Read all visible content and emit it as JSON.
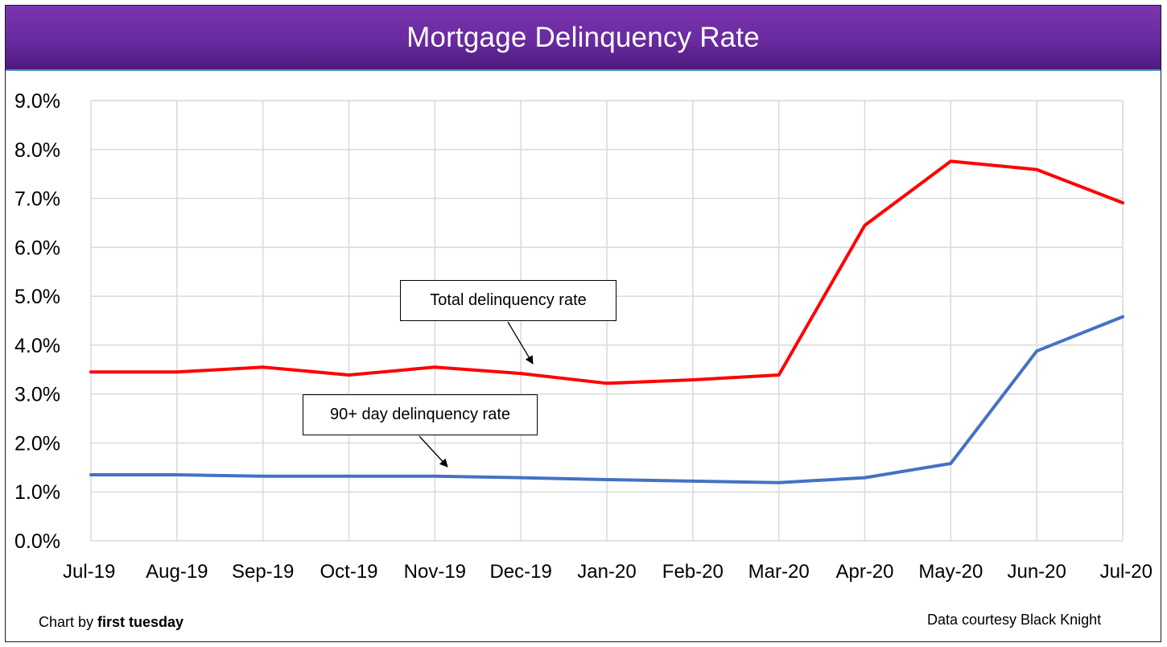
{
  "colors": {
    "title_bar": "#6a2aa0",
    "title_text": "#ffffff",
    "total_series": "#ff0000",
    "ninety_day_series": "#4472c4",
    "grid": "#d9d9d9"
  },
  "footer": {
    "chart_by_prefix": "Chart by ",
    "chart_by_name": "first tuesday",
    "source": "Data courtesy Black Knight"
  },
  "annotations": {
    "total": "Total delinquency rate",
    "ninety": "90+ day delinquency rate"
  },
  "chart_data": {
    "type": "line",
    "title": "Mortgage Delinquency Rate",
    "xlabel": "",
    "ylabel": "",
    "categories": [
      "Jul-19",
      "Aug-19",
      "Sep-19",
      "Oct-19",
      "Nov-19",
      "Dec-19",
      "Jan-20",
      "Feb-20",
      "Mar-20",
      "Apr-20",
      "May-20",
      "Jun-20",
      "Jul-20"
    ],
    "ylim": [
      0,
      9
    ],
    "yticks": [
      "0.0%",
      "1.0%",
      "2.0%",
      "3.0%",
      "4.0%",
      "5.0%",
      "6.0%",
      "7.0%",
      "8.0%",
      "9.0%"
    ],
    "grid": true,
    "series": [
      {
        "name": "Total delinquency rate",
        "color": "#ff0000",
        "values": [
          3.45,
          3.45,
          3.55,
          3.39,
          3.55,
          3.42,
          3.22,
          3.29,
          3.39,
          6.45,
          7.76,
          7.59,
          6.91
        ]
      },
      {
        "name": "90+ day delinquency rate",
        "color": "#4472c4",
        "values": [
          1.35,
          1.35,
          1.32,
          1.32,
          1.32,
          1.29,
          1.25,
          1.22,
          1.19,
          1.29,
          1.58,
          3.88,
          4.58
        ]
      }
    ]
  }
}
